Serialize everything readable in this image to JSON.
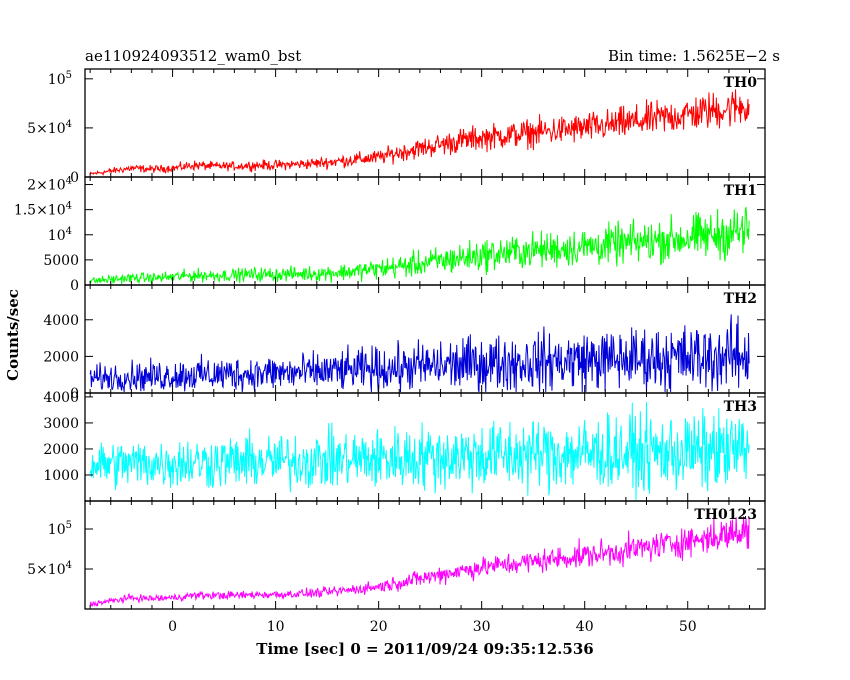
{
  "header": {
    "left_title": "ae110924093512_wam0_bst",
    "right_title": "Bin time: 1.5625E−2 s"
  },
  "axes": {
    "ylabel": "Counts/sec",
    "xlabel": "Time [sec] 0 = 2011/09/24 09:35:12.536",
    "x_ticks": [
      "0",
      "10",
      "20",
      "30",
      "40",
      "50"
    ]
  },
  "colors": {
    "TH0": "#ff0000",
    "TH1": "#00ff00",
    "TH2": "#0000d8",
    "TH3": "#00ffff",
    "TH0123": "#ff00ff"
  },
  "chart_data": [
    {
      "type": "line",
      "name": "TH0",
      "xlim": [
        -8.5,
        57.5
      ],
      "ylim": [
        0,
        110000
      ],
      "y_ticks": [
        {
          "value": 0,
          "label": "0"
        },
        {
          "value": 50000,
          "label": "5×10",
          "exp": "4"
        },
        {
          "value": 100000,
          "label": "10",
          "exp": "5"
        }
      ],
      "x": [
        -8,
        -6,
        -4,
        -2,
        0,
        2,
        4,
        6,
        8,
        10,
        12,
        14,
        16,
        18,
        20,
        22,
        24,
        26,
        28,
        30,
        32,
        34,
        36,
        38,
        40,
        42,
        44,
        46,
        48,
        50,
        52,
        54,
        56
      ],
      "mean": [
        3000,
        6000,
        9000,
        8000,
        9000,
        12000,
        11000,
        11000,
        12000,
        12000,
        13000,
        14000,
        16000,
        18000,
        20000,
        25000,
        29000,
        33000,
        37000,
        40000,
        42000,
        44000,
        46000,
        48000,
        50000,
        52000,
        55000,
        58000,
        61000,
        64000,
        67000,
        70000,
        73000
      ],
      "spread": [
        1500,
        2500,
        3000,
        3000,
        3000,
        4000,
        3500,
        3500,
        4000,
        4000,
        4000,
        4500,
        5000,
        5500,
        6000,
        7000,
        8000,
        9000,
        10000,
        10000,
        10500,
        11000,
        11500,
        12000,
        12000,
        12500,
        13000,
        13500,
        14000,
        14500,
        15000,
        16000,
        16000
      ]
    },
    {
      "type": "line",
      "name": "TH1",
      "xlim": [
        -8.5,
        57.5
      ],
      "ylim": [
        0,
        21500
      ],
      "y_ticks": [
        {
          "value": 0,
          "label": "0"
        },
        {
          "value": 5000,
          "label": "5000"
        },
        {
          "value": 10000,
          "label": "10",
          "exp": "4"
        },
        {
          "value": 15000,
          "label": "1.5×10",
          "exp": "4"
        },
        {
          "value": 20000,
          "label": "2×10",
          "exp": "4"
        }
      ],
      "x": [
        -8,
        -6,
        -4,
        -2,
        0,
        2,
        4,
        6,
        8,
        10,
        12,
        14,
        16,
        18,
        20,
        22,
        24,
        26,
        28,
        30,
        32,
        34,
        36,
        38,
        40,
        42,
        44,
        46,
        48,
        50,
        52,
        54,
        56
      ],
      "mean": [
        800,
        1100,
        1400,
        1400,
        1600,
        1900,
        1900,
        2000,
        2100,
        2100,
        2200,
        2300,
        2500,
        2800,
        3200,
        3700,
        4200,
        4800,
        5400,
        5900,
        6300,
        6700,
        7000,
        7300,
        7600,
        7900,
        8200,
        8600,
        9000,
        9400,
        9800,
        10300,
        11000
      ],
      "spread": [
        500,
        700,
        800,
        800,
        900,
        1000,
        1000,
        1000,
        1100,
        1100,
        1100,
        1200,
        1300,
        1400,
        1600,
        1800,
        2000,
        2200,
        2400,
        2500,
        2600,
        2700,
        2800,
        2900,
        3000,
        3100,
        3200,
        3300,
        3400,
        3500,
        3700,
        3900,
        4200
      ]
    },
    {
      "type": "line",
      "name": "TH2",
      "xlim": [
        -8.5,
        57.5
      ],
      "ylim": [
        0,
        5900
      ],
      "y_ticks": [
        {
          "value": 0,
          "label": "0"
        },
        {
          "value": 2000,
          "label": "2000"
        },
        {
          "value": 4000,
          "label": "4000"
        }
      ],
      "x": [
        -8,
        -6,
        -4,
        -2,
        0,
        2,
        4,
        6,
        8,
        10,
        12,
        14,
        16,
        18,
        20,
        22,
        24,
        26,
        28,
        30,
        32,
        34,
        36,
        38,
        40,
        42,
        44,
        46,
        48,
        50,
        52,
        54,
        56
      ],
      "mean": [
        800,
        850,
        900,
        900,
        950,
        1000,
        1000,
        1050,
        1050,
        1100,
        1100,
        1150,
        1200,
        1250,
        1300,
        1350,
        1450,
        1500,
        1550,
        1600,
        1650,
        1700,
        1700,
        1750,
        1800,
        1800,
        1850,
        1850,
        1900,
        1900,
        1950,
        2000,
        2050
      ],
      "spread": [
        550,
        600,
        650,
        650,
        700,
        700,
        750,
        750,
        750,
        800,
        800,
        800,
        850,
        900,
        950,
        1000,
        1050,
        1100,
        1150,
        1200,
        1200,
        1250,
        1250,
        1300,
        1300,
        1300,
        1350,
        1350,
        1400,
        1400,
        1450,
        1500,
        1550
      ]
    },
    {
      "type": "line",
      "name": "TH3",
      "xlim": [
        -8.5,
        57.5
      ],
      "ylim": [
        0,
        4150
      ],
      "y_ticks": [
        {
          "value": 1000,
          "label": "1000"
        },
        {
          "value": 2000,
          "label": "2000"
        },
        {
          "value": 3000,
          "label": "3000"
        },
        {
          "value": 4000,
          "label": "4000"
        }
      ],
      "x": [
        -8,
        -6,
        -4,
        -2,
        0,
        2,
        4,
        6,
        8,
        10,
        12,
        14,
        16,
        18,
        20,
        22,
        24,
        26,
        28,
        30,
        32,
        34,
        36,
        38,
        40,
        42,
        44,
        46,
        48,
        50,
        52,
        54,
        56
      ],
      "mean": [
        1400,
        1420,
        1440,
        1450,
        1460,
        1480,
        1490,
        1500,
        1510,
        1520,
        1540,
        1560,
        1580,
        1600,
        1620,
        1650,
        1680,
        1700,
        1720,
        1740,
        1760,
        1780,
        1800,
        1820,
        1830,
        1840,
        1850,
        1860,
        1870,
        1880,
        1890,
        1900,
        1920
      ],
      "spread": [
        700,
        720,
        740,
        750,
        760,
        780,
        790,
        800,
        810,
        820,
        840,
        860,
        880,
        900,
        920,
        950,
        980,
        1000,
        1020,
        1040,
        1060,
        1080,
        1100,
        1120,
        1130,
        1140,
        1150,
        1160,
        1170,
        1180,
        1190,
        1200,
        1220
      ]
    },
    {
      "type": "line",
      "name": "TH0123",
      "xlim": [
        -8.5,
        57.5
      ],
      "ylim": [
        0,
        135000
      ],
      "y_ticks": [
        {
          "value": 50000,
          "label": "5×10",
          "exp": "4"
        },
        {
          "value": 100000,
          "label": "10",
          "exp": "5"
        }
      ],
      "x": [
        -8,
        -6,
        -4,
        -2,
        0,
        2,
        4,
        6,
        8,
        10,
        12,
        14,
        16,
        18,
        20,
        22,
        24,
        26,
        28,
        30,
        32,
        34,
        36,
        38,
        40,
        42,
        44,
        46,
        48,
        50,
        52,
        54,
        56
      ],
      "mean": [
        6000,
        10000,
        14000,
        13000,
        14000,
        17000,
        17000,
        17000,
        18000,
        18000,
        19000,
        20000,
        22000,
        25000,
        28000,
        33000,
        38000,
        43000,
        48000,
        52000,
        55000,
        58000,
        61000,
        64000,
        67000,
        70000,
        73000,
        77000,
        81000,
        85000,
        89000,
        94000,
        98000
      ],
      "spread": [
        2500,
        3000,
        3500,
        3500,
        3500,
        4000,
        4000,
        4000,
        4000,
        4200,
        4300,
        4500,
        5000,
        5500,
        6000,
        7000,
        8000,
        9000,
        9500,
        10000,
        10500,
        11000,
        11500,
        12000,
        12500,
        13000,
        13500,
        14000,
        14500,
        15000,
        16000,
        17000,
        18000
      ]
    }
  ]
}
